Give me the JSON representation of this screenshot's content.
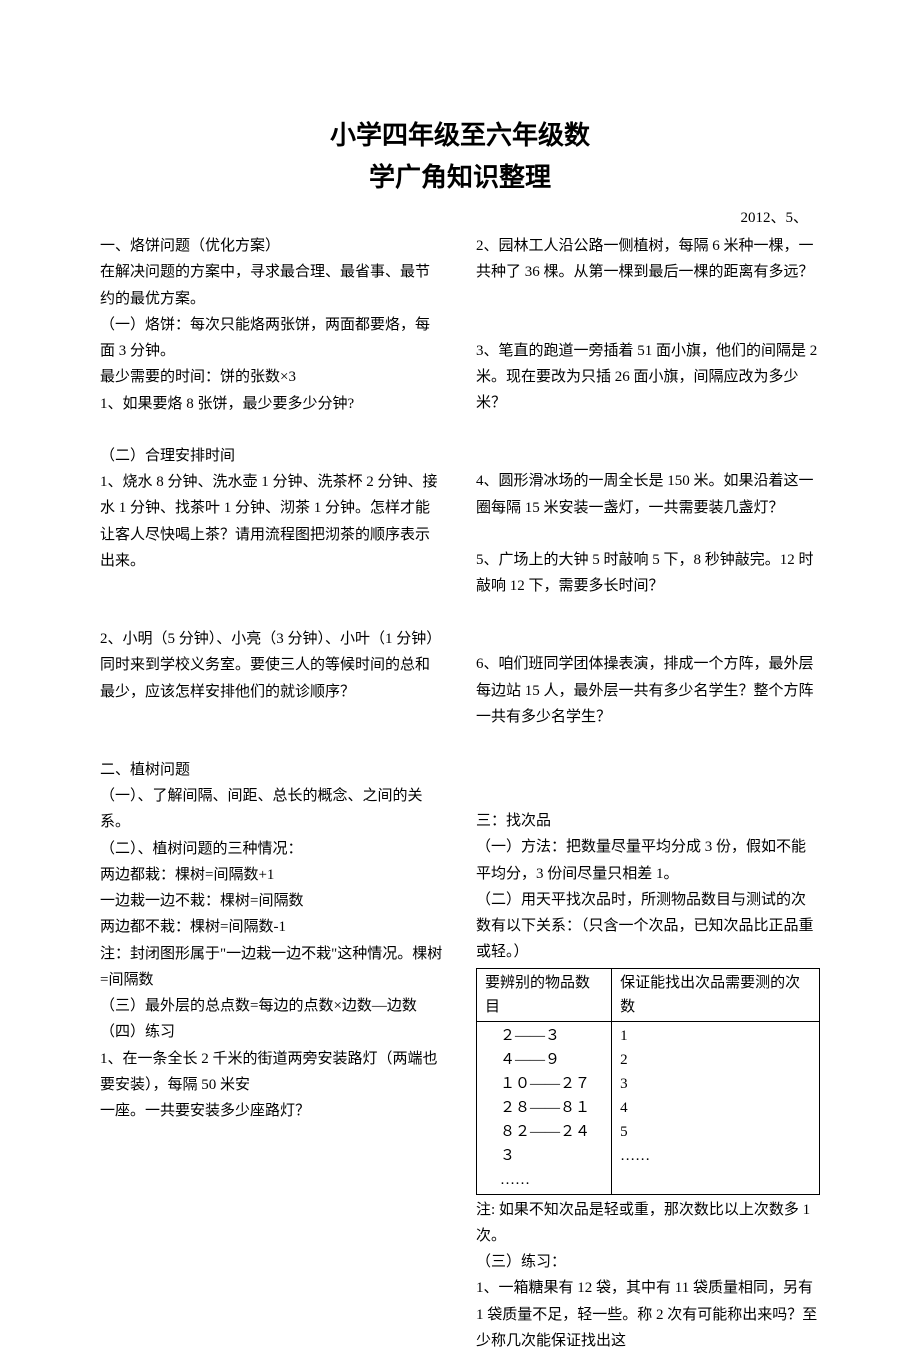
{
  "title_line1": "小学四年级至六年级数",
  "title_line2": "学广角知识整理",
  "date": "2012、5、",
  "left": {
    "s1_head": "一、烙饼问题（优化方案）",
    "s1_p1": "在解决问题的方案中，寻求最合理、最省事、最节约的最优方案。",
    "s1_a_head": "（一）烙饼：每次只能烙两张饼，两面都要烙，每面 3 分钟。",
    "s1_a_rule": " 最少需要的时间：饼的张数×3",
    "s1_a_q1": "1、如果要烙 8 张饼，最少要多少分钟?",
    "s1_b_head": "（二）合理安排时间",
    "s1_b_q1": "1、烧水 8 分钟、洗水壶 1 分钟、洗茶杯 2 分钟、接水 1 分钟、找茶叶 1 分钟、沏茶 1 分钟。怎样才能让客人尽快喝上茶？请用流程图把沏茶的顺序表示出来。",
    "s1_b_q2": "2、小明（5 分钟）、小亮（3 分钟）、小叶（1 分钟）同时来到学校义务室。要使三人的等候时间的总和最少，应该怎样安排他们的就诊顺序？",
    "s2_head": "二、植树问题",
    "s2_a": "（一）、了解间隔、间距、总长的概念、之间的关系。",
    "s2_b": "（二）、植树问题的三种情况：",
    "s2_b_r1": "两边都栽：棵树=间隔数+1",
    "s2_b_r2": "一边栽一边不栽：棵树=间隔数",
    "s2_b_r3": "两边都不栽：棵树=间隔数-1",
    "s2_b_note": "注：封闭图形属于\"一边栽一边不栽\"这种情况。棵树=间隔数",
    "s2_c": "（三）最外层的总点数=每边的点数×边数—边数",
    "s2_d": "（四）练习",
    "s2_d_q1a": "1、在一条全长 2 千米的街道两旁安装路灯（两端也要安装），每隔 50 米安",
    "s2_d_q1b": "一座。一共要安装多少座路灯？"
  },
  "right": {
    "q2": "2、园林工人沿公路一侧植树，每隔 6 米种一棵，一共种了 36 棵。从第一棵到最后一棵的距离有多远？",
    "q3": "3、笔直的跑道一旁插着 51 面小旗，他们的间隔是 2 米。现在要改为只插 26 面小旗，间隔应改为多少米？",
    "q4": "4、圆形滑冰场的一周全长是 150 米。如果沿着这一圈每隔 15 米安装一盏灯，一共需要装几盏灯？",
    "q5": "5、广场上的大钟 5 时敲响 5 下，8 秒钟敲完。12 时敲响 12 下，需要多长时间？",
    "q6": "6、咱们班同学团体操表演，排成一个方阵，最外层每边站 15 人，最外层一共有多少名学生？整个方阵一共有多少名学生？",
    "s3_head": "三：找次品",
    "s3_a": "（一）方法：把数量尽量平均分成 3 份，假如不能平均分，3 份间尽量只相差 1。",
    "s3_b": "（二）用天平找次品时，所测物品数目与测试的次数有以下关系：（只含一个次品，已知次品比正品重或轻。）",
    "table": {
      "h1": "要辨别的物品数目",
      "h2": "保证能找出次品需要测的次数",
      "rows": [
        [
          "２——３",
          "1"
        ],
        [
          "４——９",
          "2"
        ],
        [
          "１０——２７",
          "3"
        ],
        [
          "２８——８１",
          "4"
        ],
        [
          "８２——２４３",
          "5"
        ],
        [
          "……",
          "……"
        ]
      ]
    },
    "s3_note": "注: 如果不知次品是轻或重，那次数比以上次数多 1 次。",
    "s3_c": "（三）练习：",
    "s3_c_q1": "1、一箱糖果有 12 袋，其中有 11 袋质量相同，另有 1 袋质量不足，轻一些。称 2 次有可能称出来吗？至少称几次能保证找出这"
  }
}
